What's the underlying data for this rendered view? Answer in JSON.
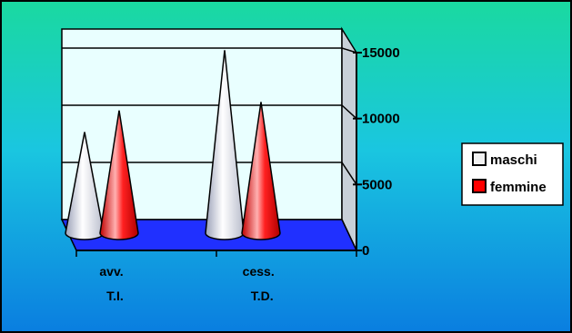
{
  "chart_data": {
    "type": "bar",
    "variant": "3d-cone",
    "categories": [
      [
        "avv.",
        "T.I."
      ],
      [
        "cess.",
        "T.D."
      ]
    ],
    "series": [
      {
        "name": "maschi",
        "color": "#f2f2f2",
        "values": [
          8400,
          15200
        ]
      },
      {
        "name": "femmine",
        "color": "#ff0000",
        "values": [
          10200,
          10900
        ]
      }
    ],
    "yticks": [
      "0",
      "5000",
      "10000",
      "15000"
    ],
    "ylim": [
      0,
      15000
    ],
    "ytick_step": 5000,
    "gridlines": true,
    "legend_position": "right",
    "colors": {
      "background_top": "#1ad9a0",
      "background_bottom": "#0a7ee0",
      "plot_wall": "#e9ffff",
      "floor": "#2030ff",
      "gridline": "#000000"
    }
  }
}
